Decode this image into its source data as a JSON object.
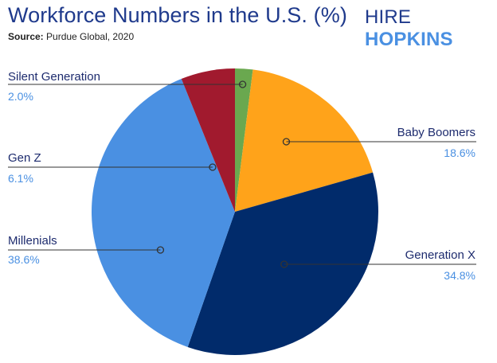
{
  "header": {
    "title": "Workforce Numbers in the U.S. (%)",
    "source_label": "Source:",
    "source_text": "Purdue Global, 2020"
  },
  "logo": {
    "part1": "HIRE",
    "part2": "HOPKINS"
  },
  "chart_data": {
    "type": "pie",
    "title": "Workforce Numbers in the U.S. (%)",
    "slices": [
      {
        "name": "Silent Generation",
        "label": "2.0%",
        "value": 2.0,
        "color": "#6aa84f"
      },
      {
        "name": "Baby Boomers",
        "label": "18.6%",
        "value": 18.6,
        "color": "#ffa31a"
      },
      {
        "name": "Generation X",
        "label": "34.8%",
        "value": 34.8,
        "color": "#012b6b"
      },
      {
        "name": "Millenials",
        "label": "38.6%",
        "value": 38.6,
        "color": "#4a90e2"
      },
      {
        "name": "Gen Z",
        "label": "6.1%",
        "value": 6.1,
        "color": "#a11a2e"
      }
    ]
  }
}
